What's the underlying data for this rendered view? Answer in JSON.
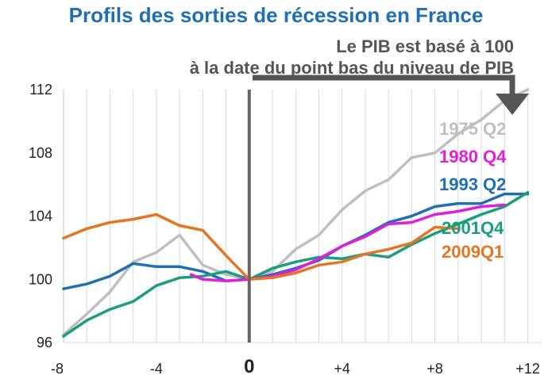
{
  "title": "Profils des sorties de récession en France",
  "note_line1": "Le PIB est basé à 100",
  "note_line2": "à la date du point bas du niveau de PIB",
  "colors": {
    "title": "#1f6fb2",
    "1975 Q2": "#bfbfbf",
    "1980 Q4": "#e020d8",
    "1993 Q2": "#1f6fb2",
    "2001Q4": "#1a9e7e",
    "2009Q1": "#e47524",
    "zero_line": "#666666",
    "arrow": "#555555"
  },
  "chart_data": {
    "type": "line",
    "title": "Profils des sorties de récession en France",
    "xlabel": "",
    "ylabel": "",
    "xlim": [
      -8,
      12.6
    ],
    "ylim": [
      96,
      112
    ],
    "x_ticks": [
      "-8",
      "-4",
      "0",
      "+4",
      "+8",
      "+12"
    ],
    "x_tick_values": [
      -8,
      -4,
      0,
      4,
      8,
      12
    ],
    "y_ticks": [
      "96",
      "100",
      "104",
      "108",
      "112"
    ],
    "y_tick_values": [
      96,
      100,
      104,
      108,
      112
    ],
    "grid": "vertical",
    "series": [
      {
        "name": "1975 Q2",
        "x": [
          -8,
          -7,
          -6,
          -5,
          -4,
          -3,
          -2,
          -1,
          0,
          1,
          2,
          3,
          4,
          5,
          6,
          7,
          8,
          9,
          10,
          11,
          12
        ],
        "values": [
          96.5,
          97.8,
          99.2,
          101.1,
          101.7,
          102.8,
          100.9,
          100.3,
          100.0,
          100.5,
          101.9,
          102.8,
          104.4,
          105.6,
          106.3,
          107.7,
          108.0,
          109.2,
          110.1,
          111.3,
          112.4
        ]
      },
      {
        "name": "1980 Q4",
        "x": [
          -2.5,
          -2,
          -1,
          0,
          1,
          2,
          3,
          4,
          5,
          6,
          7,
          8,
          9,
          10,
          11
        ],
        "values": [
          100.3,
          100.0,
          99.9,
          100.0,
          100.2,
          100.6,
          101.3,
          102.1,
          102.7,
          103.5,
          103.6,
          104.1,
          104.3,
          104.6,
          104.7
        ]
      },
      {
        "name": "1993 Q2",
        "x": [
          -8,
          -7,
          -6,
          -5,
          -4,
          -3,
          -2,
          -1,
          0,
          1,
          2,
          3,
          4,
          5,
          6,
          7,
          8,
          9,
          10,
          11,
          12
        ],
        "values": [
          99.4,
          99.7,
          100.2,
          101.0,
          100.8,
          100.8,
          100.5,
          99.9,
          100.0,
          100.3,
          100.7,
          101.2,
          102.1,
          102.8,
          103.6,
          104.0,
          104.6,
          104.8,
          104.8,
          105.4,
          105.4
        ]
      },
      {
        "name": "2001Q4",
        "x": [
          -8,
          -7,
          -6,
          -5,
          -4,
          -3,
          -2,
          -1,
          0,
          1,
          2,
          3,
          4,
          5,
          6,
          7,
          8,
          9,
          10,
          11,
          12
        ],
        "values": [
          96.4,
          97.4,
          98.1,
          98.6,
          99.6,
          100.1,
          100.2,
          100.5,
          100.0,
          100.7,
          101.1,
          101.4,
          101.3,
          101.6,
          101.4,
          102.2,
          102.9,
          103.5,
          104.1,
          104.6,
          105.5
        ]
      },
      {
        "name": "2009Q1",
        "x": [
          -8,
          -7,
          -6,
          -5,
          -4,
          -3,
          -2,
          -1,
          0,
          1,
          2,
          3,
          4,
          5,
          6,
          7,
          8,
          9
        ],
        "values": [
          102.6,
          103.2,
          103.6,
          103.8,
          104.1,
          103.4,
          103.1,
          101.5,
          100.0,
          100.1,
          100.4,
          100.9,
          101.1,
          101.6,
          101.9,
          102.3,
          103.3,
          103.2
        ]
      }
    ]
  }
}
